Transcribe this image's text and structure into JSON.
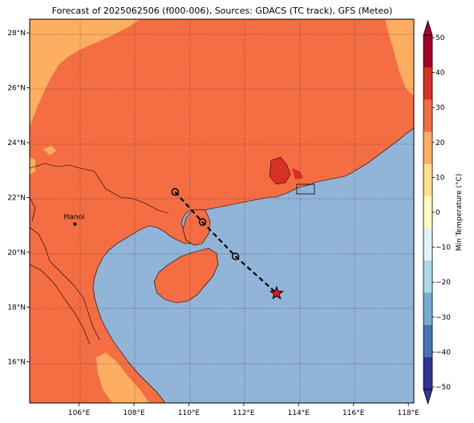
{
  "title": "Forecast of 2025062506 (f000-006), Sources: GDACS (TC track), GFS (Meteo)",
  "axes": {
    "lon_ticks": [
      {
        "value": 106,
        "label": "106°E"
      },
      {
        "value": 108,
        "label": "108°E"
      },
      {
        "value": 110,
        "label": "110°E"
      },
      {
        "value": 112,
        "label": "112°E"
      },
      {
        "value": 114,
        "label": "114°E"
      },
      {
        "value": 116,
        "label": "116°E"
      },
      {
        "value": 118,
        "label": "118°E"
      }
    ],
    "lat_ticks": [
      {
        "value": 16,
        "label": "16°N"
      },
      {
        "value": 18,
        "label": "18°N"
      },
      {
        "value": 20,
        "label": "20°N"
      },
      {
        "value": 22,
        "label": "22°N"
      },
      {
        "value": 24,
        "label": "24°N"
      },
      {
        "value": 26,
        "label": "26°N"
      },
      {
        "value": 28,
        "label": "28°N"
      }
    ],
    "lon_range": [
      104.2,
      118.2
    ],
    "lat_range": [
      14.5,
      28.5
    ]
  },
  "city": {
    "name": "Hanoi",
    "lon": 105.85,
    "lat": 21.03
  },
  "track": [
    {
      "lon": 109.5,
      "lat": 22.2,
      "marker": "circle"
    },
    {
      "lon": 110.5,
      "lat": 21.1,
      "marker": "circle"
    },
    {
      "lon": 111.7,
      "lat": 19.85,
      "marker": "circle"
    },
    {
      "lon": 113.2,
      "lat": 18.5,
      "marker": "star"
    }
  ],
  "colorbar": {
    "label": "Min Temperature (°C)",
    "ticks": [
      "50",
      "40",
      "30",
      "20",
      "10",
      "0",
      "−10",
      "−20",
      "−30",
      "−40",
      "−50"
    ],
    "colors": [
      "#a50026",
      "#d73027",
      "#f46d43",
      "#fdae61",
      "#fee090",
      "#ffffbf",
      "#e0f3f8",
      "#abd9e9",
      "#74add1",
      "#4575b4",
      "#313695"
    ],
    "min": -50,
    "max": 50
  },
  "colors": {
    "land": "#f46d43",
    "land_cool": "#fdae61",
    "land_warm": "#d73027",
    "sea": "#91b4d8",
    "track": "#000000",
    "star": "#e8141b"
  }
}
